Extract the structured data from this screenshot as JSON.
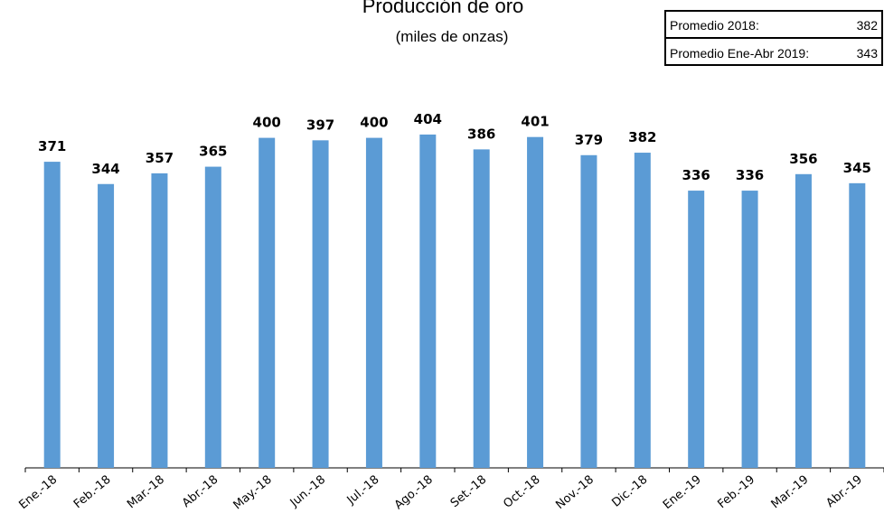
{
  "chart_data": {
    "type": "bar",
    "title": "Producción de oro",
    "subtitle": "(miles de onzas)",
    "categories": [
      "Ene.-18",
      "Feb.-18",
      "Mar.-18",
      "Abr.-18",
      "May.-18",
      "Jun.-18",
      "Jul.-18",
      "Ago.-18",
      "Set.-18",
      "Oct.-18",
      "Nov.-18",
      "Dic.-18",
      "Ene.-19",
      "Feb.-19",
      "Mar.-19",
      "Abr.-19"
    ],
    "values": [
      371,
      344,
      357,
      365,
      400,
      397,
      400,
      404,
      386,
      401,
      379,
      382,
      336,
      336,
      356,
      345
    ],
    "bar_color": "#5b9bd5",
    "ylim": [
      0,
      430
    ],
    "grid": false,
    "legend_box": {
      "placement": "top-right",
      "rows": [
        {
          "label": "Promedio 2018:",
          "value": "382"
        },
        {
          "label": "Promedio Ene-Abr 2019:",
          "value": "343"
        }
      ]
    }
  }
}
